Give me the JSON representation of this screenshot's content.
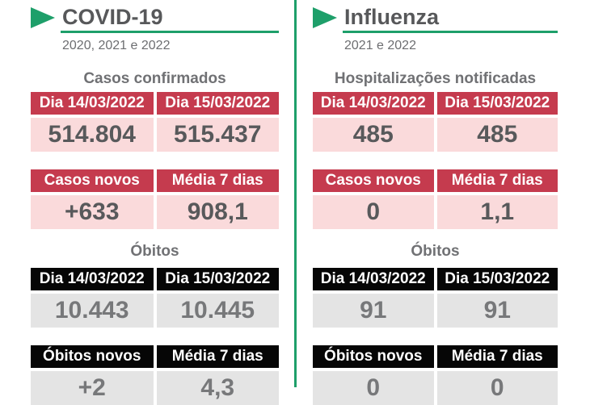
{
  "colors": {
    "accent_green": "#1E9F6A",
    "header_red": "#C53B4E",
    "cell_pink": "#FADADB",
    "header_black": "#060606",
    "cell_gray": "#E4E4E4",
    "title_text": "#57585A",
    "subtitle_text": "#6D6E71",
    "section_text": "#707174",
    "pink_value_text": "#58595B",
    "gray_value_text": "#77787A"
  },
  "icons": {
    "panel_marker": "play-triangle-icon"
  },
  "panels": [
    {
      "title": "COVID-19",
      "subtitle": "2020, 2021 e 2022",
      "sections": [
        {
          "title": "Casos confirmados",
          "style": "red",
          "rows": [
            {
              "headers": [
                "Dia 14/03/2022",
                "Dia 15/03/2022"
              ],
              "values": [
                "514.804",
                "515.437"
              ]
            },
            {
              "headers": [
                "Casos novos",
                "Média 7 dias"
              ],
              "values": [
                "+633",
                "908,1"
              ]
            }
          ]
        },
        {
          "title": "Óbitos",
          "style": "black",
          "rows": [
            {
              "headers": [
                "Dia 14/03/2022",
                "Dia 15/03/2022"
              ],
              "values": [
                "10.443",
                "10.445"
              ]
            },
            {
              "headers": [
                "Óbitos novos",
                "Média 7 dias"
              ],
              "values": [
                "+2",
                "4,3"
              ]
            }
          ]
        }
      ]
    },
    {
      "title": "Influenza",
      "subtitle": "2021 e 2022",
      "sections": [
        {
          "title": "Hospitalizações notificadas",
          "style": "red",
          "rows": [
            {
              "headers": [
                "Dia 14/03/2022",
                "Dia 15/03/2022"
              ],
              "values": [
                "485",
                "485"
              ]
            },
            {
              "headers": [
                "Casos novos",
                "Média 7 dias"
              ],
              "values": [
                "0",
                "1,1"
              ]
            }
          ]
        },
        {
          "title": "Óbitos",
          "style": "black",
          "rows": [
            {
              "headers": [
                "Dia 14/03/2022",
                "Dia 15/03/2022"
              ],
              "values": [
                "91",
                "91"
              ]
            },
            {
              "headers": [
                "Óbitos novos",
                "Média 7 dias"
              ],
              "values": [
                "0",
                "0"
              ]
            }
          ]
        }
      ]
    }
  ]
}
